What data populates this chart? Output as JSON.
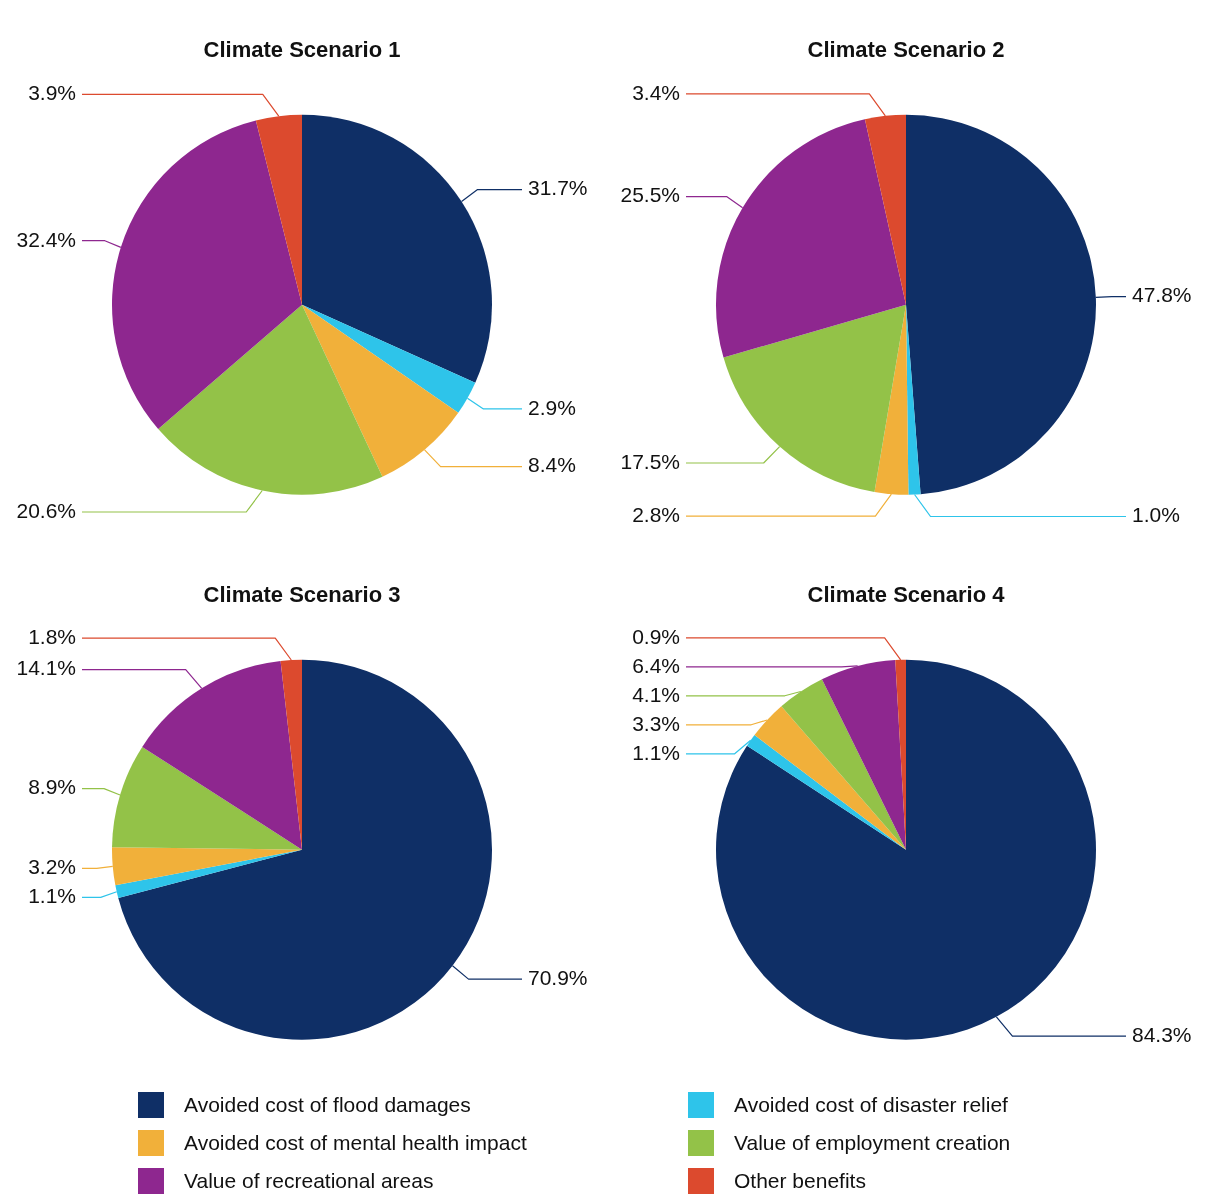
{
  "chart_data": [
    {
      "type": "pie",
      "title": "Climate Scenario 1",
      "legend": "bottom",
      "categories": [
        "Avoided cost of flood damages",
        "Avoided cost of disaster relief",
        "Avoided cost of mental health impact",
        "Value of employment creation",
        "Value of recreational areas",
        "Other benefits"
      ],
      "values": [
        31.7,
        2.9,
        8.4,
        20.6,
        32.4,
        3.9
      ],
      "value_labels": [
        "31.7%",
        "2.9%",
        "8.4%",
        "20.6%",
        "32.4%",
        "3.9%"
      ],
      "colors": [
        "#0f2f66",
        "#2ec4ea",
        "#f1b03a",
        "#93c248",
        "#8e278f",
        "#dc4a2e"
      ]
    },
    {
      "type": "pie",
      "title": "Climate Scenario 2",
      "values": [
        47.8,
        1.0,
        2.8,
        17.5,
        25.5,
        3.4
      ],
      "value_labels": [
        "47.8%",
        "1.0%",
        "2.8%",
        "17.5%",
        "25.5%",
        "3.4%"
      ],
      "colors": [
        "#0f2f66",
        "#2ec4ea",
        "#f1b03a",
        "#93c248",
        "#8e278f",
        "#dc4a2e"
      ]
    },
    {
      "type": "pie",
      "title": "Climate Scenario 3",
      "values": [
        70.9,
        1.1,
        3.2,
        8.9,
        14.1,
        1.8
      ],
      "value_labels": [
        "70.9%",
        "1.1%",
        "3.2%",
        "8.9%",
        "14.1%",
        "1.8%"
      ],
      "colors": [
        "#0f2f66",
        "#2ec4ea",
        "#f1b03a",
        "#93c248",
        "#8e278f",
        "#dc4a2e"
      ]
    },
    {
      "type": "pie",
      "title": "Climate Scenario 4",
      "values": [
        84.3,
        1.1,
        3.3,
        4.1,
        6.4,
        0.9
      ],
      "value_labels": [
        "84.3%",
        "1.1%",
        "3.3%",
        "4.1%",
        "6.4%",
        "0.9%"
      ],
      "colors": [
        "#0f2f66",
        "#2ec4ea",
        "#f1b03a",
        "#93c248",
        "#8e278f",
        "#dc4a2e"
      ]
    }
  ]
}
